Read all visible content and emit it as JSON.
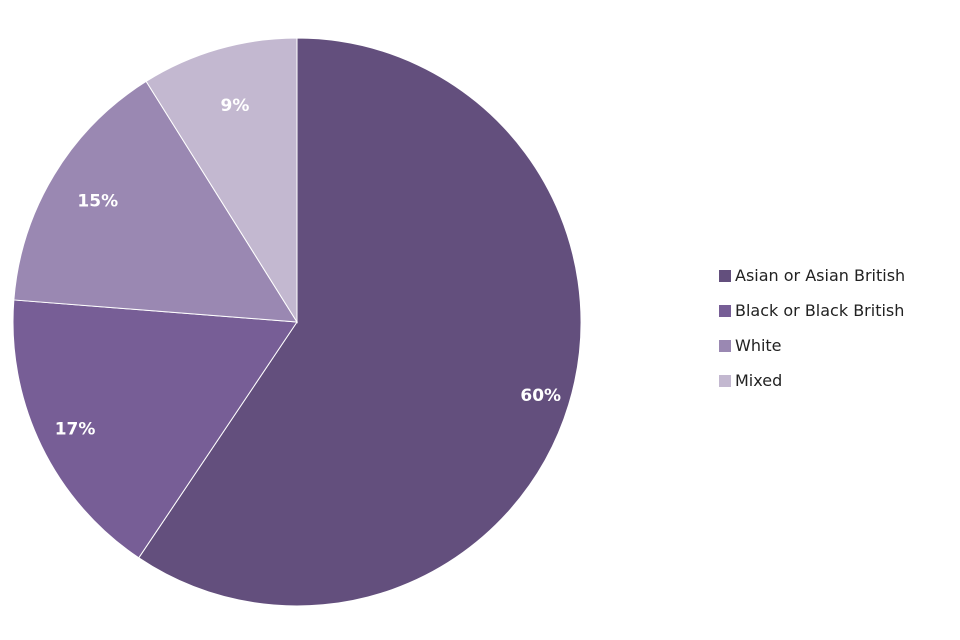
{
  "chart_data": {
    "type": "pie",
    "categories": [
      "Asian or Asian British",
      "Black or Black British",
      "White",
      "Mixed"
    ],
    "values": [
      60,
      17,
      15,
      9
    ],
    "data_labels": [
      "60%",
      "17%",
      "15%",
      "9%"
    ],
    "colors": [
      "#634f7d",
      "#775e96",
      "#9a88b2",
      "#c3b8d0"
    ],
    "start_angle": "12 o'clock",
    "direction": "clockwise",
    "legend_position": "right",
    "title": ""
  },
  "legend": {
    "items": [
      {
        "label": "Asian or Asian British",
        "color": "#634f7d"
      },
      {
        "label": "Black or Black British",
        "color": "#775e96"
      },
      {
        "label": "White",
        "color": "#9a88b2"
      },
      {
        "label": "Mixed",
        "color": "#c3b8d0"
      }
    ]
  }
}
